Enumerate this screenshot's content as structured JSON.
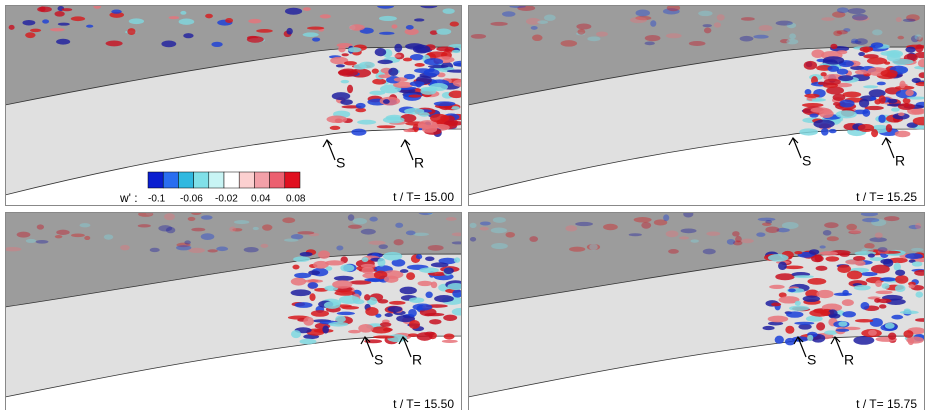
{
  "panels": [
    {
      "time": "t / T= 15.00",
      "separation": "S",
      "reattachment": "R"
    },
    {
      "time": "t / T= 15.25",
      "separation": "S",
      "reattachment": "R"
    },
    {
      "time": "t / T= 15.50",
      "separation": "S",
      "reattachment": "R"
    },
    {
      "time": "t / T= 15.75",
      "separation": "S",
      "reattachment": "R"
    }
  ],
  "colorbar": {
    "label": "w' :",
    "ticks": [
      "-0.1",
      "-0.06",
      "-0.02",
      "0.04",
      "0.08"
    ]
  }
}
